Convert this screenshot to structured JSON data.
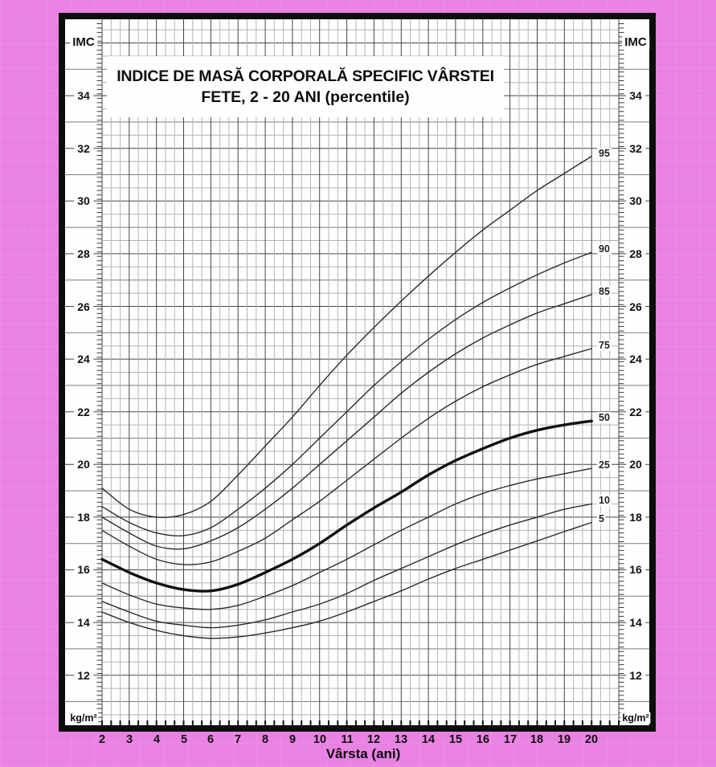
{
  "title": {
    "line1": "INDICE DE MASĂ CORPORALĂ SPECIFIC VÂRSTEI",
    "line2": "FETE, 2 - 20 ANI (percentile)"
  },
  "axes": {
    "y_axis_name": "IMC",
    "y_unit_label": "kg/m²",
    "x_label": "Vârsta (ani)",
    "x_tick_labels": [
      "2",
      "3",
      "4",
      "5",
      "6",
      "7",
      "8",
      "9",
      "10",
      "11",
      "12",
      "13",
      "14",
      "15",
      "16",
      "17",
      "18",
      "19",
      "20"
    ],
    "y_tick_labels": [
      "34",
      "32",
      "30",
      "28",
      "26",
      "24",
      "22",
      "20",
      "18",
      "16",
      "14",
      "12"
    ]
  },
  "chart_data": {
    "type": "line",
    "title": "INDICE DE MASĂ CORPORALĂ SPECIFIC VÂRSTEI — FETE, 2 - 20 ANI (percentile)",
    "xlabel": "Vârsta (ani)",
    "ylabel": "IMC (kg/m²)",
    "x": [
      2,
      3,
      4,
      5,
      6,
      7,
      8,
      9,
      10,
      11,
      12,
      13,
      14,
      15,
      16,
      17,
      18,
      19,
      20
    ],
    "series": [
      {
        "name": "95",
        "values": [
          19.1,
          18.3,
          18.0,
          18.1,
          18.6,
          19.6,
          20.7,
          21.8,
          23.0,
          24.15,
          25.2,
          26.2,
          27.15,
          28.05,
          28.9,
          29.65,
          30.4,
          31.05,
          31.7
        ],
        "emphasis": false
      },
      {
        "name": "90",
        "values": [
          18.4,
          17.8,
          17.4,
          17.3,
          17.6,
          18.3,
          19.1,
          20.0,
          21.0,
          22.0,
          23.0,
          23.9,
          24.75,
          25.5,
          26.15,
          26.7,
          27.2,
          27.65,
          28.05
        ],
        "emphasis": false
      },
      {
        "name": "85",
        "values": [
          18.0,
          17.4,
          16.9,
          16.8,
          17.1,
          17.6,
          18.3,
          19.1,
          20.0,
          20.9,
          21.8,
          22.7,
          23.5,
          24.2,
          24.8,
          25.3,
          25.75,
          26.1,
          26.45
        ],
        "emphasis": false
      },
      {
        "name": "75",
        "values": [
          17.5,
          16.9,
          16.4,
          16.2,
          16.3,
          16.7,
          17.2,
          17.9,
          18.6,
          19.4,
          20.2,
          21.0,
          21.75,
          22.4,
          22.95,
          23.4,
          23.8,
          24.1,
          24.4
        ],
        "emphasis": false
      },
      {
        "name": "50",
        "values": [
          16.4,
          15.9,
          15.5,
          15.25,
          15.2,
          15.45,
          15.9,
          16.4,
          17.0,
          17.7,
          18.35,
          18.95,
          19.6,
          20.15,
          20.6,
          21.0,
          21.3,
          21.5,
          21.65
        ],
        "emphasis": true
      },
      {
        "name": "25",
        "values": [
          15.5,
          15.05,
          14.7,
          14.55,
          14.5,
          14.65,
          15.0,
          15.4,
          15.9,
          16.4,
          16.95,
          17.5,
          18.0,
          18.5,
          18.9,
          19.2,
          19.45,
          19.65,
          19.85
        ],
        "emphasis": false
      },
      {
        "name": "10",
        "values": [
          14.8,
          14.4,
          14.05,
          13.9,
          13.8,
          13.9,
          14.1,
          14.4,
          14.7,
          15.1,
          15.6,
          16.05,
          16.5,
          16.95,
          17.35,
          17.7,
          18.0,
          18.3,
          18.5
        ],
        "emphasis": false
      },
      {
        "name": "5",
        "values": [
          14.4,
          14.0,
          13.7,
          13.5,
          13.4,
          13.45,
          13.6,
          13.8,
          14.05,
          14.4,
          14.8,
          15.2,
          15.65,
          16.05,
          16.4,
          16.75,
          17.1,
          17.45,
          17.8
        ],
        "emphasis": false
      }
    ],
    "xlim": [
      2,
      21
    ],
    "ylim": [
      10.1,
      36.9
    ],
    "x_minor_step_years": 0.3333,
    "y_minor_step_units": 0.5,
    "y_major_label_step": 2,
    "grid": true,
    "legend_position": "right-at-curve-ends"
  },
  "colors": {
    "page_pink": "#e982e2",
    "frame": "#0d0d0d",
    "paper": "#fefefe",
    "grid_minor": "#b4b4b4",
    "grid_mid": "#7d7d7d",
    "grid_major": "#454545",
    "curve": "#2b2b2b",
    "curve_emphasis": "#111111",
    "text": "#111111"
  }
}
